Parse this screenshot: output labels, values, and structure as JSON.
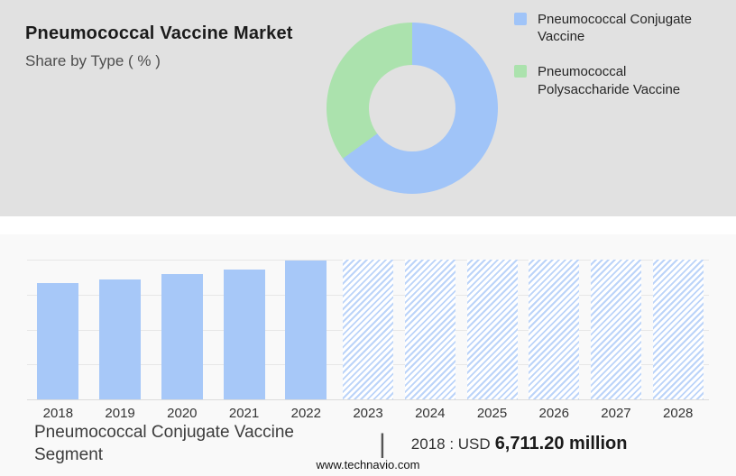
{
  "header": {
    "title": "Pneumococcal Vaccine Market",
    "subtitle": "Share by Type ( % )"
  },
  "colors": {
    "panel_bg": "#e1e1e1",
    "blue": "#a0c4f8",
    "green": "#abe2ad",
    "bar_blue": "#a7c8f8",
    "hatch_blue": "#bcd4f9"
  },
  "legend": {
    "items": [
      {
        "label": "Pneumococcal Conjugate Vaccine",
        "color": "#a0c4f8"
      },
      {
        "label": "Pneumococcal Polysaccharide Vaccine",
        "color": "#abe2ad"
      }
    ]
  },
  "chart_data": [
    {
      "type": "pie",
      "donut": true,
      "title": "Share by Type ( % )",
      "labels": [
        "Pneumococcal Conjugate Vaccine",
        "Pneumococcal Polysaccharide Vaccine"
      ],
      "values": [
        65,
        35
      ],
      "colors": [
        "#a0c4f8",
        "#abe2ad"
      ],
      "legend_position": "right"
    },
    {
      "type": "bar",
      "title": "Pneumococcal Conjugate Vaccine Segment (USD million)",
      "categories": [
        "2018",
        "2019",
        "2020",
        "2021",
        "2022",
        "2023",
        "2024",
        "2025",
        "2026",
        "2027",
        "2028"
      ],
      "values": [
        6711.2,
        6930,
        7260,
        7530,
        8020,
        8080,
        8080,
        8080,
        8080,
        8080,
        8080
      ],
      "hatched": [
        false,
        false,
        false,
        false,
        false,
        true,
        true,
        true,
        true,
        true,
        true
      ],
      "forecast_years": [
        "2023",
        "2024",
        "2025",
        "2026",
        "2027",
        "2028"
      ],
      "xlabel": "",
      "ylabel": "",
      "ylim": [
        0,
        8080
      ],
      "grid": true,
      "legend_position": "none"
    }
  ],
  "footer": {
    "segment": "Pneumococcal Conjugate Vaccine Segment",
    "separator": "|",
    "stat_prefix": "2018 : USD",
    "stat_value": "6,711.20 million",
    "website": "www.technavio.com"
  }
}
